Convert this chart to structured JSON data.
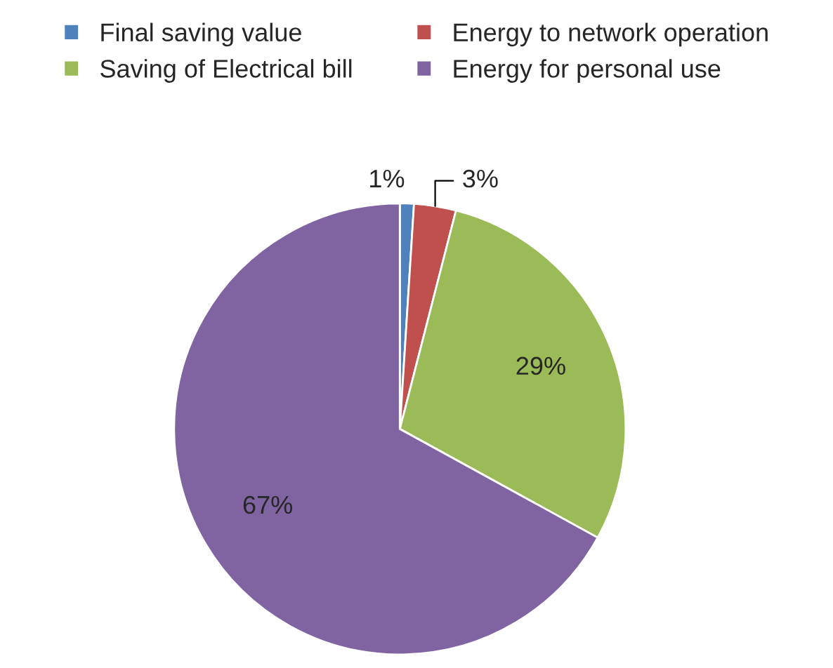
{
  "chart_data": {
    "type": "pie",
    "categories": [
      "Final saving value",
      "Energy to network operation",
      "Saving of Electrical bill",
      "Energy for personal use"
    ],
    "values": [
      1,
      3,
      29,
      67
    ],
    "colors": [
      "#4f81bd",
      "#c0504d",
      "#9bbb59",
      "#8064a2"
    ],
    "value_labels": [
      "1%",
      "3%",
      "29%",
      "67%"
    ],
    "legend": "top"
  }
}
